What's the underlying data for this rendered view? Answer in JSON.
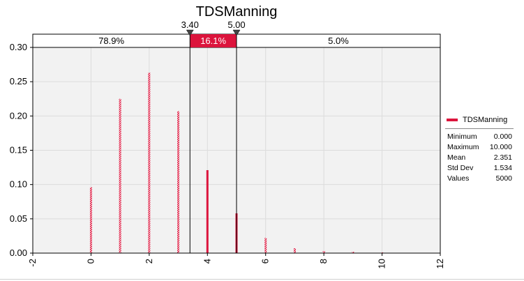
{
  "chart_data": {
    "type": "bar",
    "title": "TDSManning",
    "x": [
      0,
      1,
      2,
      3,
      4,
      5,
      6,
      7,
      8,
      9,
      10
    ],
    "series": [
      {
        "name": "TDSManning",
        "values": [
          0.096,
          0.225,
          0.263,
          0.207,
          0.121,
          0.058,
          0.022,
          0.007,
          0.003,
          0.002,
          0.001
        ]
      }
    ],
    "xlim": [
      -2,
      12
    ],
    "ylim": [
      0,
      0.3
    ],
    "x_ticks": [
      "-2",
      "0",
      "2",
      "4",
      "6",
      "8",
      "10",
      "12"
    ],
    "y_ticks": [
      "0.00",
      "0.05",
      "0.10",
      "0.15",
      "0.20",
      "0.25",
      "0.30"
    ],
    "markers": {
      "left": 3.4,
      "right": 5.0,
      "left_label": "3.40",
      "right_label": "5.00"
    },
    "regions": [
      "78.9%",
      "16.1%",
      "5.0%"
    ],
    "grid": true,
    "legend_position": "right",
    "colors": {
      "series": "#DC143C",
      "highlight_band": "#DC143C",
      "plot_bg": "#F2F2F2"
    }
  },
  "legend": {
    "series_label": "TDSManning",
    "stats": [
      {
        "label": "Minimum",
        "value": "0.000"
      },
      {
        "label": "Maximum",
        "value": "10.000"
      },
      {
        "label": "Mean",
        "value": "2.351"
      },
      {
        "label": "Std Dev",
        "value": "1.534"
      },
      {
        "label": "Values",
        "value": "5000"
      }
    ]
  }
}
